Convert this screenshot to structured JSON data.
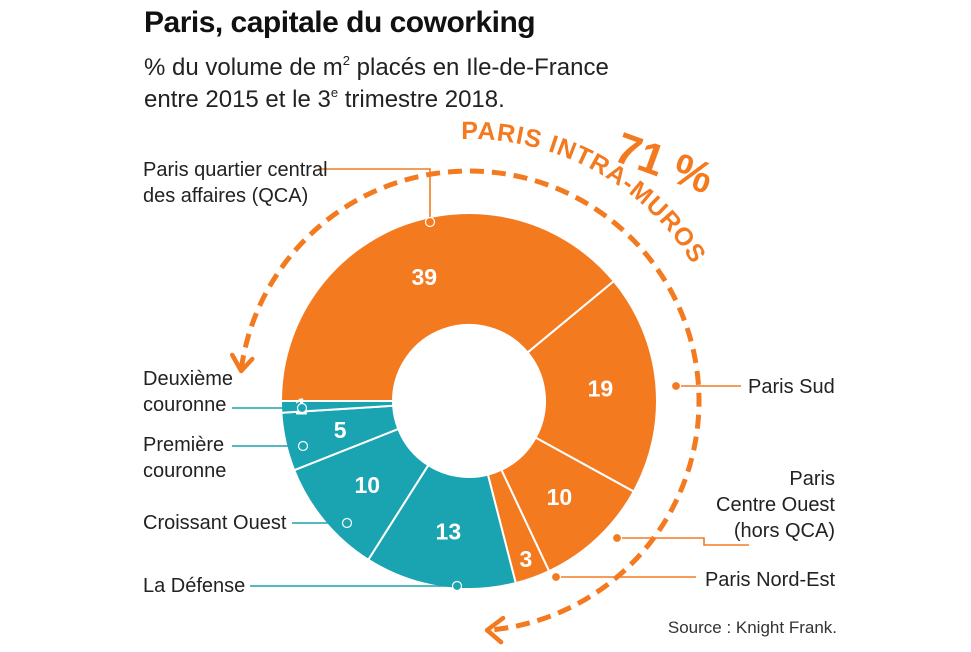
{
  "colors": {
    "paris": "#f47a20",
    "suburbs": "#1aa3b0",
    "separator": "#ffffff"
  },
  "chart_data": {
    "type": "pie",
    "title": "Paris, capitale du coworking",
    "subtitle_line1": "% du volume de m",
    "subtitle_sup1": "2",
    "subtitle_line1_end": " placés en Ile-de-France",
    "subtitle_line2": "entre 2015 et le 3",
    "subtitle_sup2": "e",
    "subtitle_line2_end": " trimestre 2018.",
    "unit": "%",
    "slices": [
      {
        "label_lines": [
          "Paris quartier central",
          "des affaires (QCA)"
        ],
        "value": 39,
        "group": "paris"
      },
      {
        "label_lines": [
          "Paris Sud"
        ],
        "value": 19,
        "group": "paris"
      },
      {
        "label_lines": [
          "Paris",
          "Centre Ouest",
          "(hors QCA)"
        ],
        "value": 10,
        "group": "paris"
      },
      {
        "label_lines": [
          "Paris Nord-Est"
        ],
        "value": 3,
        "group": "paris"
      },
      {
        "label_lines": [
          "La Défense"
        ],
        "value": 13,
        "group": "suburbs"
      },
      {
        "label_lines": [
          "Croissant Ouest"
        ],
        "value": 10,
        "group": "suburbs"
      },
      {
        "label_lines": [
          "Première",
          "couronne"
        ],
        "value": 5,
        "group": "suburbs"
      },
      {
        "label_lines": [
          "Deuxième",
          "couronne"
        ],
        "value": 1,
        "group": "suburbs"
      }
    ],
    "highlight": {
      "value_text": "71 %",
      "label": "PARIS INTRA-MUROS"
    }
  },
  "source": "Source : Knight Frank."
}
